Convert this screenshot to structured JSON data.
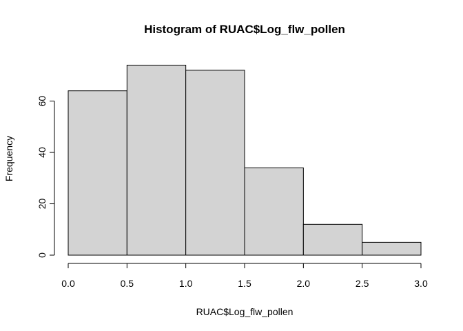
{
  "chart_data": {
    "type": "bar",
    "title": "Histogram of RUAC$Log_flw_pollen",
    "xlabel": "RUAC$Log_flw_pollen",
    "ylabel": "Frequency",
    "bins": [
      {
        "from": 0.0,
        "to": 0.5,
        "count": 64
      },
      {
        "from": 0.5,
        "to": 1.0,
        "count": 74
      },
      {
        "from": 1.0,
        "to": 1.5,
        "count": 72
      },
      {
        "from": 1.5,
        "to": 2.0,
        "count": 34
      },
      {
        "from": 2.0,
        "to": 2.5,
        "count": 12
      },
      {
        "from": 2.5,
        "to": 3.0,
        "count": 5
      }
    ],
    "xlim": [
      0,
      3
    ],
    "ylim": [
      0,
      76
    ],
    "x_ticks": [
      "0.0",
      "0.5",
      "1.0",
      "1.5",
      "2.0",
      "2.5",
      "3.0"
    ],
    "x_tick_values": [
      0,
      0.5,
      1.0,
      1.5,
      2.0,
      2.5,
      3.0
    ],
    "y_ticks": [
      "0",
      "20",
      "40",
      "60"
    ],
    "y_tick_values": [
      0,
      20,
      40,
      60
    ],
    "bar_color": "#d3d3d3",
    "grid": false,
    "legend": false
  }
}
